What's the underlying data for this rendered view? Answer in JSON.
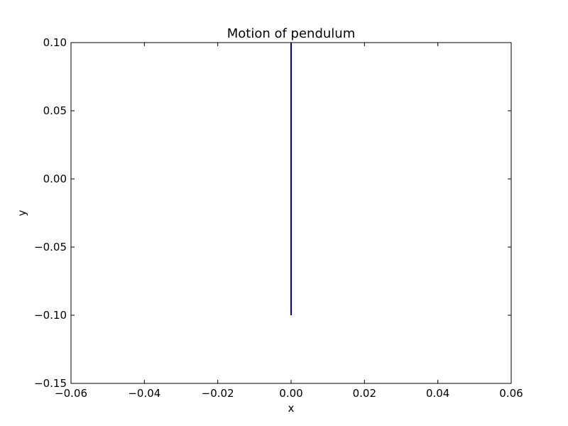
{
  "chart_data": {
    "type": "line",
    "title": "Motion of pendulum",
    "xlabel": "x",
    "ylabel": "y",
    "xlim": [
      -0.06,
      0.06
    ],
    "ylim": [
      -0.15,
      0.1
    ],
    "xticks": [
      -0.06,
      -0.04,
      -0.02,
      0.0,
      0.02,
      0.04,
      0.06
    ],
    "yticks": [
      -0.15,
      -0.1,
      -0.05,
      0.0,
      0.05,
      0.1
    ],
    "xtick_labels": [
      "−0.06",
      "−0.04",
      "−0.02",
      "0.00",
      "0.02",
      "0.04",
      "0.06"
    ],
    "ytick_labels": [
      "−0.15",
      "−0.10",
      "−0.05",
      "0.00",
      "0.05",
      "0.10"
    ],
    "grid": false,
    "series": [
      {
        "x": [
          0.0,
          0.0
        ],
        "y": [
          0.1,
          -0.1
        ],
        "color": "#0000aa"
      }
    ]
  }
}
